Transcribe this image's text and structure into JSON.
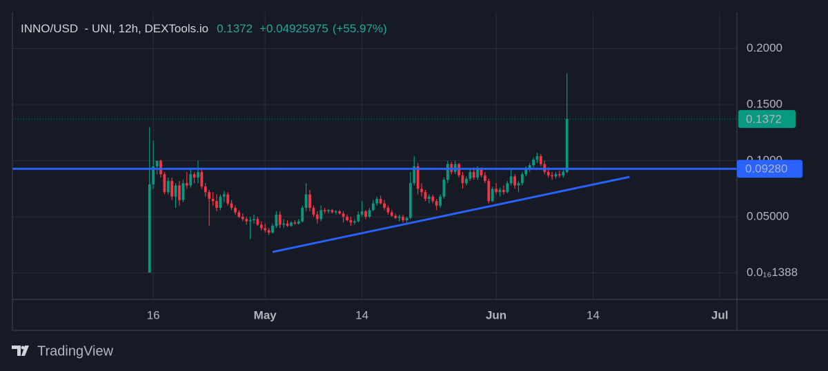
{
  "chart_data": {
    "type": "candlestick",
    "title": "INNO/USD  - UNI, 12h, DEXTools.io",
    "last_price": 0.1372,
    "change": "+0.04925975",
    "change_pct": "(+55.97%)",
    "up_color": "#089981",
    "down_color": "#f23645",
    "grid": true,
    "xlim": [
      -2.9,
      94.3
    ],
    "xticks": [
      {
        "value": 16,
        "label": "16"
      },
      {
        "value": 31,
        "label": "May"
      },
      {
        "value": 44,
        "label": "14"
      },
      {
        "value": 62,
        "label": "Jun"
      },
      {
        "value": 75,
        "label": "14"
      },
      {
        "value": 92,
        "label": "Jul"
      }
    ],
    "ylim": [
      -0.0236,
      0.2322
    ],
    "yticks": [
      {
        "value": 1.388e-17,
        "label": "0.0₁₆1388"
      },
      {
        "value": 0.05,
        "label": "0.05000"
      },
      {
        "value": 0.1,
        "label": "0.1000"
      },
      {
        "value": 0.15,
        "label": "0.1500"
      },
      {
        "value": 0.2,
        "label": "0.2000"
      }
    ],
    "hline": {
      "value": 0.0928,
      "label": "0.09280",
      "color": "#2962ff"
    },
    "trendline": {
      "x": [
        32,
        79.9
      ],
      "values": [
        0.0187,
        0.0856
      ],
      "color": "#2962ff"
    },
    "x": [
      15.5,
      16,
      16.5,
      17,
      17.5,
      18,
      18.5,
      19,
      19.5,
      20,
      20.5,
      21,
      21.5,
      22,
      22.5,
      23,
      23.5,
      24,
      24.5,
      25,
      25.5,
      26,
      26.5,
      27,
      27.5,
      28,
      28.5,
      29,
      29.5,
      30,
      30.5,
      31,
      31.5,
      32,
      32.5,
      33,
      33.5,
      34,
      34.5,
      35,
      35.5,
      36,
      36.5,
      37,
      37.5,
      38,
      38.5,
      39,
      39.5,
      40,
      40.5,
      41,
      41.5,
      42,
      42.5,
      43,
      43.5,
      44,
      44.5,
      45,
      45.5,
      46,
      46.5,
      47,
      47.5,
      48,
      48.5,
      49,
      49.5,
      50,
      50.5,
      51,
      51.5,
      52,
      52.5,
      53,
      53.5,
      54,
      54.5,
      55,
      55.5,
      56,
      56.5,
      57,
      57.5,
      58,
      58.5,
      59,
      59.5,
      60,
      60.5,
      61,
      61.5,
      62,
      62.5,
      63,
      63.5,
      64,
      64.5,
      65,
      65.5,
      66,
      66.5,
      67,
      67.5,
      68,
      68.5,
      69,
      69.5,
      70,
      70.5,
      71,
      71.5
    ],
    "candles": [
      [
        0.0005,
        0.13,
        0.0003,
        0.079
      ],
      [
        0.079,
        0.118,
        0.075,
        0.095
      ],
      [
        0.095,
        0.1,
        0.088,
        0.1
      ],
      [
        0.1,
        0.101,
        0.085,
        0.088
      ],
      [
        0.088,
        0.09,
        0.07,
        0.072
      ],
      [
        0.072,
        0.085,
        0.07,
        0.082
      ],
      [
        0.082,
        0.085,
        0.065,
        0.068
      ],
      [
        0.068,
        0.08,
        0.058,
        0.078
      ],
      [
        0.078,
        0.082,
        0.06,
        0.065
      ],
      [
        0.065,
        0.083,
        0.063,
        0.08
      ],
      [
        0.08,
        0.09,
        0.075,
        0.078
      ],
      [
        0.078,
        0.092,
        0.076,
        0.088
      ],
      [
        0.088,
        0.09,
        0.08,
        0.085
      ],
      [
        0.085,
        0.1,
        0.08,
        0.09
      ],
      [
        0.09,
        0.092,
        0.075,
        0.077
      ],
      [
        0.077,
        0.08,
        0.068,
        0.072
      ],
      [
        0.072,
        0.074,
        0.042,
        0.066
      ],
      [
        0.066,
        0.072,
        0.06,
        0.064
      ],
      [
        0.064,
        0.07,
        0.055,
        0.058
      ],
      [
        0.058,
        0.07,
        0.056,
        0.068
      ],
      [
        0.068,
        0.073,
        0.063,
        0.07
      ],
      [
        0.07,
        0.072,
        0.06,
        0.062
      ],
      [
        0.062,
        0.065,
        0.056,
        0.058
      ],
      [
        0.058,
        0.06,
        0.052,
        0.054
      ],
      [
        0.054,
        0.056,
        0.049,
        0.05
      ],
      [
        0.05,
        0.053,
        0.046,
        0.048
      ],
      [
        0.048,
        0.05,
        0.043,
        0.046
      ],
      [
        0.046,
        0.05,
        0.03,
        0.047
      ],
      [
        0.047,
        0.052,
        0.044,
        0.048
      ],
      [
        0.048,
        0.05,
        0.042,
        0.043
      ],
      [
        0.043,
        0.046,
        0.038,
        0.04
      ],
      [
        0.04,
        0.044,
        0.036,
        0.038
      ],
      [
        0.038,
        0.04,
        0.034,
        0.036
      ],
      [
        0.036,
        0.044,
        0.035,
        0.042
      ],
      [
        0.042,
        0.055,
        0.04,
        0.052
      ],
      [
        0.052,
        0.055,
        0.04,
        0.043
      ],
      [
        0.043,
        0.048,
        0.04,
        0.044
      ],
      [
        0.044,
        0.047,
        0.041,
        0.042
      ],
      [
        0.042,
        0.046,
        0.041,
        0.045
      ],
      [
        0.045,
        0.047,
        0.043,
        0.044
      ],
      [
        0.044,
        0.048,
        0.043,
        0.046
      ],
      [
        0.046,
        0.06,
        0.045,
        0.058
      ],
      [
        0.058,
        0.08,
        0.055,
        0.07
      ],
      [
        0.07,
        0.074,
        0.055,
        0.058
      ],
      [
        0.058,
        0.06,
        0.05,
        0.052
      ],
      [
        0.052,
        0.055,
        0.044,
        0.048
      ],
      [
        0.048,
        0.06,
        0.046,
        0.056
      ],
      [
        0.056,
        0.058,
        0.053,
        0.055
      ],
      [
        0.055,
        0.057,
        0.053,
        0.056
      ],
      [
        0.056,
        0.057,
        0.053,
        0.054
      ],
      [
        0.054,
        0.056,
        0.052,
        0.055
      ],
      [
        0.055,
        0.056,
        0.052,
        0.053
      ],
      [
        0.053,
        0.055,
        0.045,
        0.05
      ],
      [
        0.05,
        0.052,
        0.046,
        0.047
      ],
      [
        0.047,
        0.05,
        0.042,
        0.045
      ],
      [
        0.045,
        0.048,
        0.043,
        0.046
      ],
      [
        0.046,
        0.055,
        0.045,
        0.052
      ],
      [
        0.052,
        0.064,
        0.05,
        0.055
      ],
      [
        0.055,
        0.056,
        0.048,
        0.05
      ],
      [
        0.05,
        0.058,
        0.049,
        0.056
      ],
      [
        0.056,
        0.065,
        0.055,
        0.062
      ],
      [
        0.062,
        0.068,
        0.06,
        0.066
      ],
      [
        0.066,
        0.069,
        0.061,
        0.062
      ],
      [
        0.062,
        0.065,
        0.056,
        0.058
      ],
      [
        0.058,
        0.06,
        0.052,
        0.054
      ],
      [
        0.054,
        0.056,
        0.05,
        0.051
      ],
      [
        0.051,
        0.053,
        0.048,
        0.049
      ],
      [
        0.049,
        0.052,
        0.046,
        0.05
      ],
      [
        0.05,
        0.052,
        0.045,
        0.047
      ],
      [
        0.047,
        0.05,
        0.045,
        0.049
      ],
      [
        0.049,
        0.09,
        0.048,
        0.08
      ],
      [
        0.08,
        0.104,
        0.078,
        0.095
      ],
      [
        0.095,
        0.098,
        0.07,
        0.075
      ],
      [
        0.075,
        0.08,
        0.068,
        0.072
      ],
      [
        0.072,
        0.074,
        0.064,
        0.066
      ],
      [
        0.066,
        0.07,
        0.062,
        0.068
      ],
      [
        0.068,
        0.07,
        0.062,
        0.064
      ],
      [
        0.064,
        0.066,
        0.056,
        0.06
      ],
      [
        0.06,
        0.07,
        0.058,
        0.068
      ],
      [
        0.068,
        0.085,
        0.066,
        0.083
      ],
      [
        0.083,
        0.1,
        0.08,
        0.097
      ],
      [
        0.097,
        0.099,
        0.088,
        0.09
      ],
      [
        0.09,
        0.1,
        0.088,
        0.097
      ],
      [
        0.097,
        0.098,
        0.085,
        0.087
      ],
      [
        0.087,
        0.09,
        0.075,
        0.08
      ],
      [
        0.08,
        0.086,
        0.078,
        0.084
      ],
      [
        0.084,
        0.092,
        0.082,
        0.09
      ],
      [
        0.09,
        0.094,
        0.083,
        0.085
      ],
      [
        0.085,
        0.095,
        0.083,
        0.092
      ],
      [
        0.092,
        0.094,
        0.085,
        0.087
      ],
      [
        0.087,
        0.09,
        0.08,
        0.082
      ],
      [
        0.082,
        0.084,
        0.062,
        0.064
      ],
      [
        0.064,
        0.077,
        0.063,
        0.075
      ],
      [
        0.075,
        0.08,
        0.07,
        0.072
      ],
      [
        0.072,
        0.076,
        0.068,
        0.074
      ],
      [
        0.074,
        0.078,
        0.07,
        0.072
      ],
      [
        0.072,
        0.082,
        0.071,
        0.08
      ],
      [
        0.08,
        0.092,
        0.078,
        0.086
      ],
      [
        0.086,
        0.088,
        0.075,
        0.078
      ],
      [
        0.078,
        0.082,
        0.072,
        0.08
      ],
      [
        0.08,
        0.09,
        0.078,
        0.088
      ],
      [
        0.088,
        0.095,
        0.086,
        0.093
      ],
      [
        0.093,
        0.098,
        0.09,
        0.096
      ],
      [
        0.096,
        0.103,
        0.094,
        0.101
      ],
      [
        0.101,
        0.107,
        0.098,
        0.104
      ],
      [
        0.104,
        0.106,
        0.095,
        0.097
      ],
      [
        0.097,
        0.1,
        0.088,
        0.09
      ],
      [
        0.09,
        0.094,
        0.085,
        0.087
      ],
      [
        0.087,
        0.09,
        0.083,
        0.086
      ],
      [
        0.086,
        0.09,
        0.084,
        0.088
      ],
      [
        0.088,
        0.091,
        0.085,
        0.087
      ],
      [
        0.087,
        0.092,
        0.085,
        0.09
      ],
      [
        0.09,
        0.178,
        0.089,
        0.1372
      ]
    ]
  },
  "footer": {
    "brand": "TradingView"
  }
}
